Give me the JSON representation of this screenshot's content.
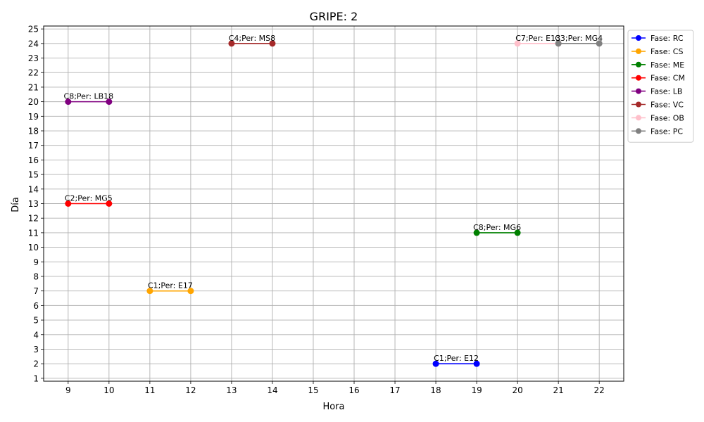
{
  "chart_data": {
    "type": "line",
    "title": "GRIPE: 2",
    "xlabel": "Hora",
    "ylabel": "Día",
    "xlim": [
      8.4,
      22.6
    ],
    "ylim": [
      0.8,
      25.2
    ],
    "xticks": [
      9,
      10,
      11,
      12,
      13,
      14,
      15,
      16,
      17,
      18,
      19,
      20,
      21,
      22
    ],
    "yticks": [
      1,
      2,
      3,
      4,
      5,
      6,
      7,
      8,
      9,
      10,
      11,
      12,
      13,
      14,
      15,
      16,
      17,
      18,
      19,
      20,
      21,
      22,
      23,
      24,
      25
    ],
    "grid": true,
    "legend_position": "outside-top-right",
    "series": [
      {
        "name": "Fase: RC",
        "color": "#0000ff",
        "x": [
          18,
          19
        ],
        "y": [
          2,
          2
        ],
        "label": "C1;Per: E12"
      },
      {
        "name": "Fase: CS",
        "color": "#ffa500",
        "x": [
          11,
          12
        ],
        "y": [
          7,
          7
        ],
        "label": "C1;Per: E17"
      },
      {
        "name": "Fase: ME",
        "color": "#008000",
        "x": [
          19,
          20
        ],
        "y": [
          11,
          11
        ],
        "label": "C8;Per: MG6"
      },
      {
        "name": "Fase: CM",
        "color": "#ff0000",
        "x": [
          9,
          10
        ],
        "y": [
          13,
          13
        ],
        "label": "C2;Per: MG5"
      },
      {
        "name": "Fase: LB",
        "color": "#800080",
        "x": [
          9,
          10
        ],
        "y": [
          20,
          20
        ],
        "label": "C8;Per: LB18"
      },
      {
        "name": "Fase: VC",
        "color": "#a52a2a",
        "x": [
          13,
          14
        ],
        "y": [
          24,
          24
        ],
        "label": "C4;Per: MS8"
      },
      {
        "name": "Fase: OB",
        "color": "#ffc0cb",
        "x": [
          20,
          21
        ],
        "y": [
          24,
          24
        ],
        "label": "C7;Per: E13"
      },
      {
        "name": "Fase: PC",
        "color": "#808080",
        "x": [
          21,
          22
        ],
        "y": [
          24,
          24
        ],
        "label": "C3;Per: MG4"
      }
    ]
  }
}
